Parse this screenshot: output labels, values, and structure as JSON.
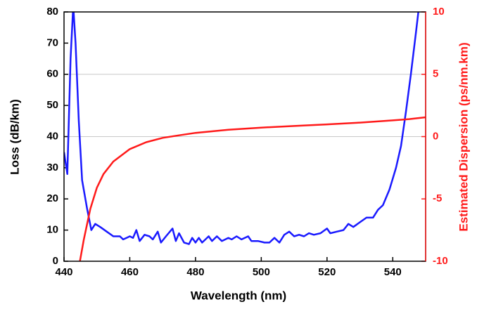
{
  "chart_data": {
    "type": "line",
    "x_label": "Wavelength (nm)",
    "y_label": "Loss (dB/km)",
    "y2_label": "Estimated Dispersion (ps/nm.km)",
    "xlim": [
      440,
      550
    ],
    "xticks": [
      440,
      460,
      480,
      500,
      520,
      540
    ],
    "ylim": [
      0,
      80
    ],
    "yticks": [
      0,
      10,
      20,
      30,
      40,
      50,
      60,
      70,
      80
    ],
    "y2lim": [
      -10,
      10
    ],
    "y2ticks": [
      -10,
      -5,
      0,
      5,
      10
    ],
    "grid_y": [
      40,
      60
    ],
    "series": [
      {
        "color": "#1a1aff",
        "x": [
          440,
          441,
          442,
          442.8,
          443.5,
          444.5,
          445.5,
          447,
          448.3,
          449.5,
          451,
          453,
          455,
          457,
          458,
          459,
          460,
          461,
          462,
          463,
          464.5,
          466,
          467,
          468.5,
          469.5,
          471,
          473,
          474,
          475,
          476.5,
          478,
          479,
          480,
          481,
          482,
          484,
          485,
          486.5,
          488,
          490,
          491,
          492.5,
          494,
          496,
          497,
          499,
          501,
          502.5,
          504,
          505.5,
          507,
          508.5,
          510,
          511.5,
          513,
          514.5,
          516,
          518,
          520,
          521,
          523,
          525,
          526.5,
          528,
          530,
          532,
          534,
          535.5,
          537,
          539,
          541,
          542.5,
          544,
          545.5,
          547,
          548
        ],
        "values": [
          35,
          28,
          65,
          82,
          70,
          45,
          26,
          17,
          10,
          12,
          11,
          9.5,
          8,
          8,
          7,
          7.5,
          8,
          7.5,
          10,
          6.5,
          8.5,
          8,
          7,
          9.5,
          6,
          8,
          10.5,
          6.5,
          9,
          6,
          5.5,
          7.5,
          6,
          7.5,
          6,
          8,
          6.5,
          8,
          6.5,
          7.5,
          7,
          8,
          7,
          8,
          6.5,
          6.5,
          6,
          6,
          7.5,
          6,
          8.5,
          9.5,
          8,
          8.5,
          8,
          9,
          8.5,
          9,
          10.5,
          9,
          9.5,
          10,
          12,
          11,
          12.5,
          14,
          14,
          16.5,
          18,
          23,
          30,
          37,
          48,
          60,
          73,
          82
        ]
      },
      {
        "color": "#ff1a1a",
        "axis": "y2",
        "x": [
          444.5,
          446,
          448,
          450,
          452,
          455,
          460,
          465,
          470,
          475,
          480,
          490,
          500,
          510,
          520,
          530,
          540,
          545,
          550
        ],
        "values": [
          -10.5,
          -8.3,
          -5.8,
          -4.1,
          -3.0,
          -2.0,
          -1.0,
          -0.45,
          -0.1,
          0.1,
          0.3,
          0.55,
          0.72,
          0.85,
          0.98,
          1.12,
          1.3,
          1.4,
          1.55
        ]
      }
    ]
  }
}
